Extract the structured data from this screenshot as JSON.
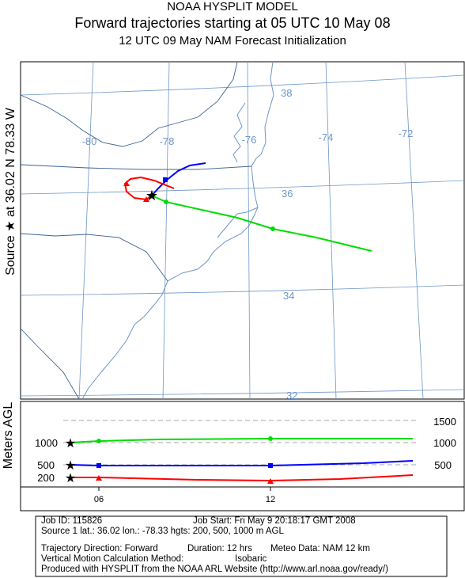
{
  "titles": {
    "model": "NOAA HYSPLIT MODEL",
    "main": "Forward trajectories starting at 05 UTC 10 May 08",
    "sub": "12 UTC 09 May      NAM  Forecast Initialization"
  },
  "side_label": "Source ★ at  36.02 N   78.33 W",
  "map": {
    "lon_labels": [
      "-80",
      "-78",
      "-76",
      "-74",
      "-72"
    ],
    "lat_labels": [
      "38",
      "36",
      "34",
      "32"
    ],
    "grid_color": "#6e96c8",
    "coast_color": "#6e96c8",
    "border_color": "#3c6496"
  },
  "trajectories": [
    {
      "height_m": 200,
      "color": "#ff0000",
      "marker": "triangle"
    },
    {
      "height_m": 500,
      "color": "#0000ff",
      "marker": "square"
    },
    {
      "height_m": 1000,
      "color": "#00dd00",
      "marker": "circle"
    }
  ],
  "vertical_plot": {
    "ylabel": "Meters AGL",
    "right_labels": [
      "1500",
      "1000",
      "500"
    ],
    "left_labels": [
      "1000",
      "500",
      "200"
    ],
    "time_labels": [
      "06",
      "12"
    ]
  },
  "info": {
    "job_id": "Job ID: 115826",
    "job_start": "Job Start: Fri May  9 20:18:17 GMT 2008",
    "source_line": "Source 1 lat.: 36.02  lon.: -78.33  hgts: 200, 500, 1000 m AGL",
    "direction": "Trajectory Direction: Forward",
    "duration": "Duration: 12 hrs",
    "meteo": "Meteo Data: NAM 12 km",
    "vmethod_label": "Vertical Motion Calculation Method:",
    "vmethod_value": "Isobaric",
    "produced": "Produced with HYSPLIT from the NOAA ARL Website (http://www.arl.noaa.gov/ready/)"
  }
}
